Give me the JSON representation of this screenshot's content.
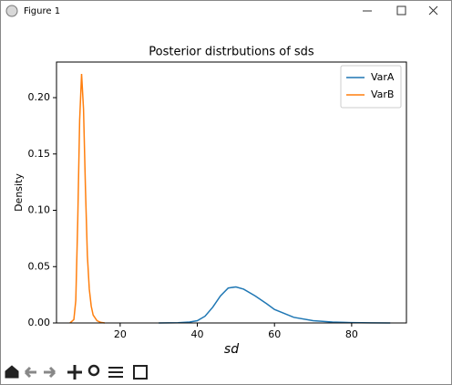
{
  "window": {
    "title": "Figure 1"
  },
  "chart_data": {
    "type": "line",
    "title": "Posterior distrbutions of sds",
    "x_label": "sd",
    "y_label": "Density",
    "xlim": [
      3.5,
      94.2
    ],
    "ylim": [
      0,
      0.2316
    ],
    "xticks": [
      20,
      40,
      60,
      80
    ],
    "yticks": [
      {
        "value": 0,
        "label": "0.00"
      },
      {
        "value": 0.05,
        "label": "0.05"
      },
      {
        "value": 0.1,
        "label": "0.10"
      },
      {
        "value": 0.15,
        "label": "0.15"
      },
      {
        "value": 0.2,
        "label": "0.20"
      }
    ],
    "legend": "upper right",
    "grid": false,
    "series": [
      {
        "name": "VarA",
        "color": "#1f77b4",
        "x": [
          30,
          35,
          38,
          40,
          42,
          44,
          46,
          48,
          50,
          52,
          55,
          58,
          60,
          65,
          70,
          75,
          80,
          85,
          90
        ],
        "values": [
          0,
          0.0002,
          0.0008,
          0.002,
          0.006,
          0.014,
          0.024,
          0.031,
          0.032,
          0.03,
          0.024,
          0.017,
          0.012,
          0.005,
          0.002,
          0.0008,
          0.0003,
          0.0001,
          0
        ]
      },
      {
        "name": "VarB",
        "color": "#ff7f0e",
        "x": [
          7,
          8,
          8.5,
          9,
          9.5,
          10,
          10.5,
          11,
          11.5,
          12,
          12.5,
          13,
          14,
          15,
          16
        ],
        "values": [
          0,
          0.003,
          0.02,
          0.09,
          0.18,
          0.221,
          0.19,
          0.12,
          0.06,
          0.03,
          0.015,
          0.007,
          0.002,
          0.0005,
          0
        ]
      }
    ]
  }
}
